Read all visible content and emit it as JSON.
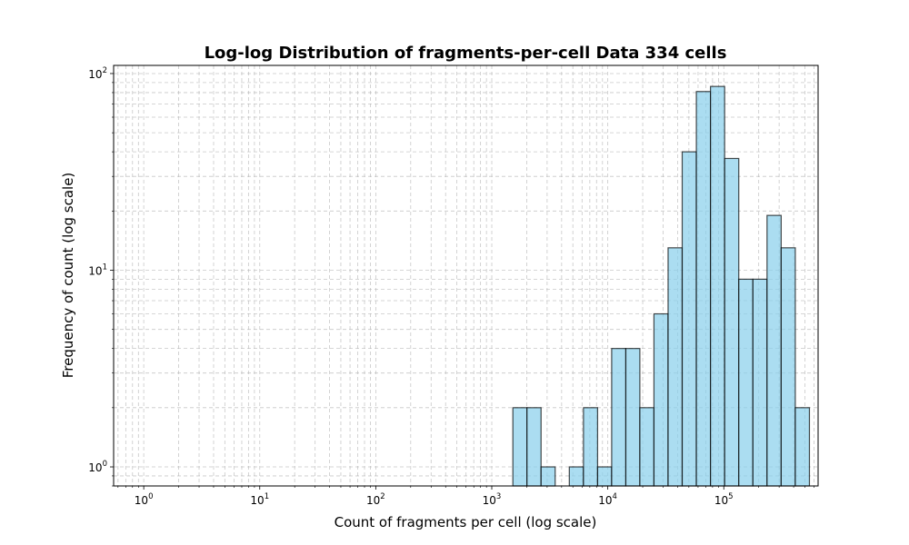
{
  "chart_data": {
    "type": "bar",
    "title": "Log-log Distribution of fragments-per-cell Data 334 cells",
    "xlabel": "Count of fragments per cell (log scale)",
    "ylabel": "Frequency of count (log scale)",
    "x_scale": "log",
    "y_scale": "log",
    "xlim": [
      0.55,
      650000
    ],
    "ylim": [
      0.8,
      110
    ],
    "grid": true,
    "x_ticks": [
      {
        "base": "10",
        "exp": "0"
      },
      {
        "base": "10",
        "exp": "1"
      },
      {
        "base": "10",
        "exp": "2"
      },
      {
        "base": "10",
        "exp": "3"
      },
      {
        "base": "10",
        "exp": "4"
      },
      {
        "base": "10",
        "exp": "5"
      }
    ],
    "y_ticks": [
      {
        "base": "10",
        "exp": "0"
      },
      {
        "base": "10",
        "exp": "1"
      },
      {
        "base": "10",
        "exp": "2"
      }
    ],
    "bar_color": "#87ceeb",
    "bins": [
      {
        "x0": 1520,
        "x1": 2010,
        "count": 2
      },
      {
        "x0": 2010,
        "x1": 2660,
        "count": 2
      },
      {
        "x0": 2660,
        "x1": 3520,
        "count": 1
      },
      {
        "x0": 3520,
        "x1": 4660,
        "count": 0
      },
      {
        "x0": 4660,
        "x1": 6170,
        "count": 1
      },
      {
        "x0": 6170,
        "x1": 8170,
        "count": 2
      },
      {
        "x0": 8170,
        "x1": 10800,
        "count": 1
      },
      {
        "x0": 10800,
        "x1": 14300,
        "count": 4
      },
      {
        "x0": 14300,
        "x1": 18900,
        "count": 4
      },
      {
        "x0": 18900,
        "x1": 25000,
        "count": 2
      },
      {
        "x0": 25000,
        "x1": 33100,
        "count": 6
      },
      {
        "x0": 33100,
        "x1": 43800,
        "count": 13
      },
      {
        "x0": 43800,
        "x1": 58000,
        "count": 40
      },
      {
        "x0": 58000,
        "x1": 76800,
        "count": 81
      },
      {
        "x0": 76800,
        "x1": 101700,
        "count": 86
      },
      {
        "x0": 101700,
        "x1": 134600,
        "count": 37
      },
      {
        "x0": 134600,
        "x1": 178200,
        "count": 9
      },
      {
        "x0": 178200,
        "x1": 235900,
        "count": 9
      },
      {
        "x0": 235900,
        "x1": 312300,
        "count": 19
      },
      {
        "x0": 312300,
        "x1": 413400,
        "count": 13
      },
      {
        "x0": 413400,
        "x1": 547300,
        "count": 2
      }
    ]
  }
}
